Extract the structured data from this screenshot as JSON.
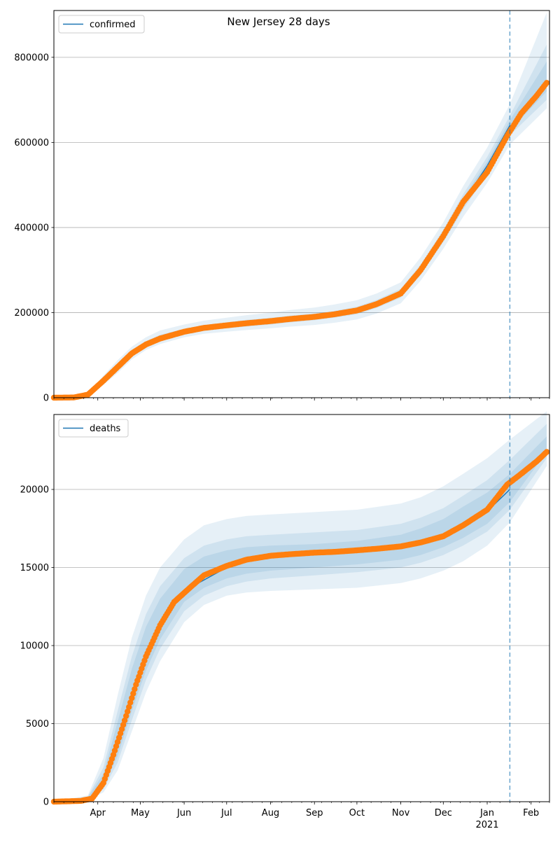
{
  "figure": {
    "title": "New Jersey 28 days"
  },
  "chart_data": [
    {
      "type": "line",
      "series": [
        {
          "name": "confirmed",
          "kind": "fit",
          "color": "#1f77b4",
          "x": [
            "2020-03-01",
            "2020-03-15",
            "2020-03-25",
            "2020-04-05",
            "2020-04-15",
            "2020-04-25",
            "2020-05-05",
            "2020-05-15",
            "2020-06-01",
            "2020-06-15",
            "2020-07-01",
            "2020-07-15",
            "2020-08-01",
            "2020-08-15",
            "2020-09-01",
            "2020-09-15",
            "2020-10-01",
            "2020-10-15",
            "2020-11-01",
            "2020-11-15",
            "2020-12-01",
            "2020-12-15",
            "2021-01-01",
            "2021-01-17"
          ],
          "y": [
            0,
            500,
            7000,
            40000,
            72000,
            104000,
            125000,
            139000,
            155000,
            164000,
            170000,
            175000,
            180000,
            185000,
            190000,
            196000,
            205000,
            220000,
            245000,
            300000,
            380000,
            460000,
            545000,
            640000
          ]
        },
        {
          "name": "",
          "kind": "observed",
          "color": "#ff7f0e",
          "x": [
            "2020-03-01",
            "2020-03-15",
            "2020-03-25",
            "2020-04-05",
            "2020-04-15",
            "2020-04-25",
            "2020-05-05",
            "2020-05-15",
            "2020-06-01",
            "2020-06-15",
            "2020-07-01",
            "2020-07-15",
            "2020-08-01",
            "2020-08-15",
            "2020-09-01",
            "2020-09-15",
            "2020-10-01",
            "2020-10-15",
            "2020-11-01",
            "2020-11-15",
            "2020-12-01",
            "2020-12-15",
            "2021-01-01",
            "2021-01-15",
            "2021-01-25",
            "2021-02-05",
            "2021-02-12"
          ],
          "y": [
            0,
            500,
            7000,
            40000,
            72000,
            104000,
            125000,
            139000,
            155000,
            164000,
            170000,
            175000,
            180000,
            185000,
            190000,
            196000,
            205000,
            220000,
            245000,
            300000,
            380000,
            460000,
            530000,
            615000,
            668000,
            710000,
            740000
          ]
        }
      ],
      "bands": [
        {
          "x": [
            "2020-03-01",
            "2020-03-25",
            "2020-04-05",
            "2020-04-15",
            "2020-04-25",
            "2020-05-05",
            "2020-05-15",
            "2020-06-01",
            "2020-06-15",
            "2020-07-01",
            "2020-07-15",
            "2020-08-01",
            "2020-08-15",
            "2020-09-01",
            "2020-09-15",
            "2020-10-01",
            "2020-10-15",
            "2020-11-01",
            "2020-11-15",
            "2020-12-01",
            "2020-12-15",
            "2021-01-01",
            "2021-01-17",
            "2021-02-12"
          ],
          "lower": [
            0,
            5000,
            30000,
            58000,
            90000,
            112000,
            126000,
            142000,
            150000,
            155000,
            159000,
            163000,
            167000,
            171000,
            176000,
            184000,
            198000,
            222000,
            275000,
            350000,
            425000,
            505000,
            595000,
            680000
          ],
          "upper": [
            0,
            10000,
            52000,
            88000,
            120000,
            142000,
            158000,
            172000,
            181000,
            188000,
            194000,
            200000,
            206000,
            212000,
            219000,
            229000,
            245000,
            271000,
            330000,
            412000,
            497000,
            588000,
            690000,
            905000
          ],
          "opacity": 0.11
        },
        {
          "x": [
            "2020-03-01",
            "2020-03-25",
            "2020-04-05",
            "2020-04-15",
            "2020-04-25",
            "2020-05-05",
            "2020-05-15",
            "2020-06-01",
            "2020-06-15",
            "2020-07-01",
            "2020-07-15",
            "2020-08-01",
            "2020-08-15",
            "2020-09-01",
            "2020-09-15",
            "2020-10-01",
            "2020-10-15",
            "2020-11-01",
            "2020-11-15",
            "2020-12-01",
            "2020-12-15",
            "2021-01-01",
            "2021-01-17",
            "2021-02-12"
          ],
          "lower": [
            0,
            6000,
            34000,
            64000,
            96000,
            118000,
            132000,
            148000,
            157000,
            163000,
            167000,
            172000,
            177000,
            182000,
            188000,
            196000,
            211000,
            235000,
            288000,
            366000,
            442000,
            525000,
            617000,
            700000
          ],
          "upper": [
            0,
            8500,
            46000,
            80000,
            112000,
            133000,
            148000,
            162000,
            171000,
            177000,
            183000,
            188000,
            193000,
            198000,
            204000,
            214000,
            230000,
            256000,
            313000,
            395000,
            478000,
            566000,
            663000,
            830000
          ],
          "opacity": 0.11
        },
        {
          "x": [
            "2020-03-01",
            "2020-03-25",
            "2020-04-05",
            "2020-04-15",
            "2020-04-25",
            "2020-05-05",
            "2020-05-15",
            "2020-06-01",
            "2020-06-15",
            "2020-07-01",
            "2020-07-15",
            "2020-08-01",
            "2020-08-15",
            "2020-09-01",
            "2020-09-15",
            "2020-10-01",
            "2020-10-15",
            "2020-11-01",
            "2020-11-15",
            "2020-12-01",
            "2020-12-15",
            "2021-01-01",
            "2021-01-17",
            "2021-02-12"
          ],
          "lower": [
            0,
            6500,
            37000,
            68000,
            100000,
            122000,
            136000,
            151000,
            160000,
            166000,
            171000,
            176000,
            181000,
            186000,
            192000,
            201000,
            216000,
            240000,
            294000,
            373000,
            451000,
            535000,
            628000,
            720000
          ],
          "upper": [
            0,
            7500,
            43000,
            76000,
            108000,
            129000,
            143000,
            158000,
            168000,
            174000,
            179000,
            184000,
            189000,
            194000,
            200000,
            209000,
            224000,
            250000,
            306000,
            387000,
            469000,
            555000,
            652000,
            790000
          ],
          "opacity": 0.11
        }
      ],
      "forecast_start": "2021-01-17",
      "xlim": [
        "2020-03-01",
        "2021-02-14"
      ],
      "ylim": [
        0,
        910000
      ],
      "y_ticks": [
        0,
        200000,
        400000,
        600000,
        800000
      ],
      "x_tick_labels": [],
      "grid": "horizontal",
      "legend": "top-left"
    },
    {
      "type": "line",
      "series": [
        {
          "name": "deaths",
          "kind": "fit",
          "color": "#1f77b4",
          "x": [
            "2020-03-01",
            "2020-03-20",
            "2020-03-28",
            "2020-04-05",
            "2020-04-12",
            "2020-04-20",
            "2020-04-28",
            "2020-05-05",
            "2020-05-15",
            "2020-05-25",
            "2020-06-05",
            "2020-06-15",
            "2020-07-01",
            "2020-07-15",
            "2020-08-01",
            "2020-08-15",
            "2020-09-01",
            "2020-09-15",
            "2020-10-01",
            "2020-10-15",
            "2020-11-01",
            "2020-11-15",
            "2020-12-01",
            "2020-12-15",
            "2021-01-01",
            "2021-01-17"
          ],
          "y": [
            0,
            50,
            200,
            1200,
            3000,
            5200,
            7500,
            9300,
            11300,
            12800,
            13700,
            14200,
            15000,
            15400,
            15700,
            15800,
            15900,
            16000,
            16050,
            16150,
            16300,
            16550,
            17000,
            17600,
            18600,
            20000
          ]
        },
        {
          "name": "",
          "kind": "observed",
          "color": "#ff7f0e",
          "x": [
            "2020-03-01",
            "2020-03-20",
            "2020-03-28",
            "2020-04-05",
            "2020-04-12",
            "2020-04-20",
            "2020-04-28",
            "2020-05-05",
            "2020-05-15",
            "2020-05-25",
            "2020-06-05",
            "2020-06-15",
            "2020-07-01",
            "2020-07-15",
            "2020-08-01",
            "2020-08-15",
            "2020-09-01",
            "2020-09-15",
            "2020-10-01",
            "2020-10-15",
            "2020-11-01",
            "2020-11-15",
            "2020-12-01",
            "2020-12-15",
            "2021-01-01",
            "2021-01-15",
            "2021-01-25",
            "2021-02-05",
            "2021-02-12"
          ],
          "y": [
            0,
            50,
            200,
            1200,
            3000,
            5200,
            7500,
            9300,
            11300,
            12800,
            13700,
            14500,
            15100,
            15500,
            15750,
            15850,
            15950,
            16000,
            16100,
            16200,
            16350,
            16600,
            17000,
            17700,
            18700,
            20300,
            21000,
            21800,
            22400
          ]
        }
      ],
      "bands": [
        {
          "x": [
            "2020-03-01",
            "2020-03-25",
            "2020-04-05",
            "2020-04-15",
            "2020-04-25",
            "2020-05-05",
            "2020-05-15",
            "2020-06-01",
            "2020-06-15",
            "2020-07-01",
            "2020-07-15",
            "2020-08-01",
            "2020-09-01",
            "2020-10-01",
            "2020-11-01",
            "2020-11-15",
            "2020-12-01",
            "2020-12-15",
            "2021-01-01",
            "2021-01-17",
            "2021-02-12"
          ],
          "lower": [
            0,
            100,
            600,
            2000,
            4500,
            7000,
            9000,
            11500,
            12600,
            13200,
            13400,
            13500,
            13600,
            13700,
            14000,
            14300,
            14800,
            15400,
            16400,
            17900,
            21500
          ],
          "upper": [
            0,
            400,
            2800,
            6800,
            10500,
            13200,
            15000,
            16800,
            17700,
            18100,
            18300,
            18400,
            18550,
            18700,
            19100,
            19500,
            20200,
            21000,
            22000,
            23200,
            25000
          ],
          "opacity": 0.11
        },
        {
          "x": [
            "2020-03-01",
            "2020-03-25",
            "2020-04-05",
            "2020-04-15",
            "2020-04-25",
            "2020-05-05",
            "2020-05-15",
            "2020-06-01",
            "2020-06-15",
            "2020-07-01",
            "2020-07-15",
            "2020-08-01",
            "2020-09-01",
            "2020-10-01",
            "2020-11-01",
            "2020-11-15",
            "2020-12-01",
            "2020-12-15",
            "2021-01-01",
            "2021-01-17",
            "2021-02-12"
          ],
          "lower": [
            0,
            150,
            800,
            2500,
            5200,
            7800,
            9800,
            12200,
            13200,
            13800,
            14100,
            14300,
            14500,
            14700,
            15000,
            15300,
            15800,
            16400,
            17300,
            18700,
            22000
          ],
          "upper": [
            0,
            320,
            2200,
            5800,
            9300,
            12000,
            13800,
            15600,
            16400,
            16800,
            17000,
            17100,
            17250,
            17400,
            17800,
            18200,
            18800,
            19600,
            20600,
            21900,
            24200
          ],
          "opacity": 0.11
        },
        {
          "x": [
            "2020-03-01",
            "2020-03-25",
            "2020-04-05",
            "2020-04-15",
            "2020-04-25",
            "2020-05-05",
            "2020-05-15",
            "2020-06-01",
            "2020-06-15",
            "2020-07-01",
            "2020-07-15",
            "2020-08-01",
            "2020-09-01",
            "2020-10-01",
            "2020-11-01",
            "2020-11-15",
            "2020-12-01",
            "2020-12-15",
            "2021-01-01",
            "2021-01-17",
            "2021-02-12"
          ],
          "lower": [
            0,
            180,
            950,
            2900,
            5800,
            8400,
            10400,
            12800,
            13700,
            14300,
            14600,
            14800,
            15000,
            15200,
            15500,
            15800,
            16300,
            16900,
            17800,
            19200,
            22400
          ],
          "upper": [
            0,
            280,
            1800,
            5100,
            8500,
            11200,
            13000,
            14900,
            15700,
            16100,
            16300,
            16400,
            16500,
            16700,
            17100,
            17500,
            18100,
            18900,
            19800,
            21000,
            23400
          ],
          "opacity": 0.11
        }
      ],
      "forecast_start": "2021-01-17",
      "xlim": [
        "2020-03-01",
        "2021-02-14"
      ],
      "ylim": [
        0,
        24800
      ],
      "y_ticks": [
        0,
        5000,
        10000,
        15000,
        20000
      ],
      "x_tick_labels": [
        {
          "date": "2020-04-01",
          "label": "Apr"
        },
        {
          "date": "2020-05-01",
          "label": "May"
        },
        {
          "date": "2020-06-01",
          "label": "Jun"
        },
        {
          "date": "2020-07-01",
          "label": "Jul"
        },
        {
          "date": "2020-08-01",
          "label": "Aug"
        },
        {
          "date": "2020-09-01",
          "label": "Sep"
        },
        {
          "date": "2020-10-01",
          "label": "Oct"
        },
        {
          "date": "2020-11-01",
          "label": "Nov"
        },
        {
          "date": "2020-12-01",
          "label": "Dec"
        },
        {
          "date": "2021-01-01",
          "label": "Jan",
          "sublabel": "2021"
        },
        {
          "date": "2021-02-01",
          "label": "Feb"
        }
      ],
      "grid": "horizontal",
      "legend": "top-left"
    }
  ]
}
